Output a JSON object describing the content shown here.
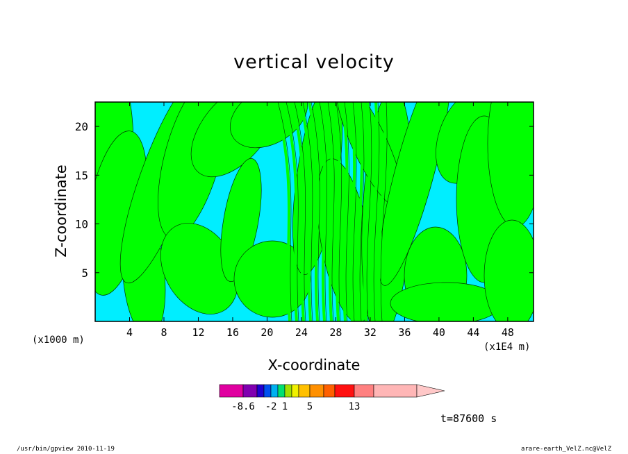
{
  "chart_data": {
    "type": "heatmap",
    "title": "vertical velocity",
    "xlabel": "X-coordinate",
    "ylabel": "Z-coordinate",
    "x_unit": "(x1000 m)",
    "x_scale": "(x1E4 m)",
    "x_ticks": [
      4,
      8,
      12,
      16,
      20,
      24,
      28,
      32,
      36,
      40,
      44,
      48
    ],
    "y_ticks": [
      5,
      10,
      15,
      20
    ],
    "xlim": [
      0,
      51
    ],
    "ylim": [
      0,
      22.5
    ],
    "colorbar": {
      "colors": [
        "#e000a0",
        "#8000b0",
        "#2000d0",
        "#0050f0",
        "#00b0f0",
        "#00e070",
        "#a0e000",
        "#f0f000",
        "#ffc000",
        "#ff9000",
        "#ff6000",
        "#ff1010",
        "#ff8080",
        "#ffb6b6",
        "#ffc8c8"
      ],
      "labels": [
        "-8.6",
        "-2",
        "1",
        "5",
        "13"
      ]
    },
    "dominant_fills": {
      "negative": "#00eeff",
      "positive": "#00ff00"
    },
    "time_label": "t=87600 s"
  },
  "footer": {
    "left": "/usr/bin/gpview   2010-11-19",
    "right": "arare-earth_VelZ.nc@VelZ"
  }
}
